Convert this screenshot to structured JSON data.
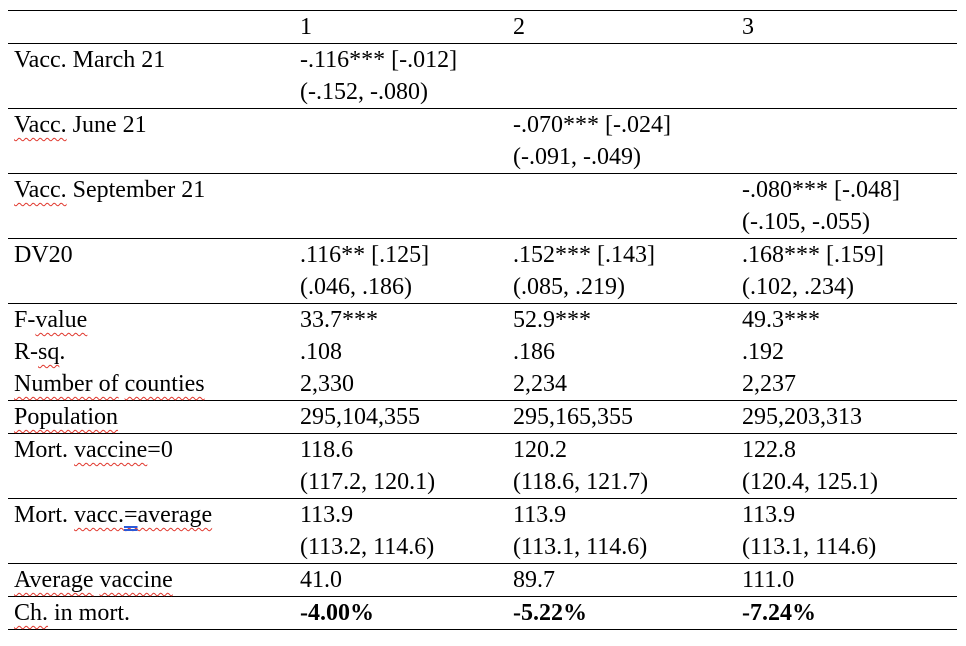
{
  "page": {
    "background": "#ffffff"
  },
  "style": {
    "text_color": "#000000",
    "border_color": "#000000",
    "spell_underline_color": "#e0362c",
    "grammar_underline_color": "#2b59d8"
  },
  "table": {
    "header": [
      "",
      "1",
      "2",
      "3"
    ],
    "rows": [
      {
        "name": "row-vacc-march-21",
        "border_top": true,
        "bold": false,
        "label": [
          {
            "text": "Vacc. March 21"
          }
        ],
        "cells": [
          {
            "lines": [
              "-.116*** [-.012]",
              "(-.152, -.080)"
            ]
          },
          {
            "lines": []
          },
          {
            "lines": []
          }
        ]
      },
      {
        "name": "row-vacc-june-21",
        "border_top": true,
        "bold": false,
        "label": [
          {
            "text": "Vacc.",
            "mark": "sp"
          },
          {
            "text": " June 21"
          }
        ],
        "cells": [
          {
            "lines": []
          },
          {
            "lines": [
              "-.070*** [-.024]",
              "(-.091, -.049)"
            ]
          },
          {
            "lines": []
          }
        ]
      },
      {
        "name": "row-vacc-september-21",
        "border_top": true,
        "bold": false,
        "label": [
          {
            "text": "Vacc.",
            "mark": "sp"
          },
          {
            "text": " September 21"
          }
        ],
        "cells": [
          {
            "lines": []
          },
          {
            "lines": []
          },
          {
            "lines": [
              "-.080*** [-.048]",
              "(-.105, -.055)"
            ]
          }
        ]
      },
      {
        "name": "row-dv20",
        "border_top": true,
        "bold": false,
        "label": [
          {
            "text": "DV20"
          }
        ],
        "cells": [
          {
            "lines": [
              ".116** [.125]",
              "(.046, .186)"
            ]
          },
          {
            "lines": [
              ".152*** [.143]",
              "(.085, .219)"
            ]
          },
          {
            "lines": [
              ".168*** [.159]",
              "(.102, .234)"
            ]
          }
        ]
      },
      {
        "name": "row-f-value",
        "border_top": true,
        "bold": false,
        "label": [
          {
            "text": "F-"
          },
          {
            "text": "value",
            "mark": "sp"
          }
        ],
        "cells": [
          {
            "lines": [
              "33.7***"
            ]
          },
          {
            "lines": [
              "52.9***"
            ]
          },
          {
            "lines": [
              "49.3***"
            ]
          }
        ]
      },
      {
        "name": "row-r-sq",
        "border_top": false,
        "bold": false,
        "label": [
          {
            "text": "R-"
          },
          {
            "text": "sq",
            "mark": "sp"
          },
          {
            "text": "."
          }
        ],
        "cells": [
          {
            "lines": [
              ".108"
            ]
          },
          {
            "lines": [
              ".186"
            ]
          },
          {
            "lines": [
              ".192"
            ]
          }
        ]
      },
      {
        "name": "row-number-of-counties",
        "border_top": false,
        "bold": false,
        "label": [
          {
            "text": "Number of",
            "mark": "sp"
          },
          {
            "text": " "
          },
          {
            "text": "counties",
            "mark": "sp"
          }
        ],
        "cells": [
          {
            "lines": [
              "2,330"
            ]
          },
          {
            "lines": [
              "2,234"
            ]
          },
          {
            "lines": [
              "2,237"
            ]
          }
        ]
      },
      {
        "name": "row-population",
        "border_top": true,
        "bold": false,
        "label": [
          {
            "text": "Population",
            "mark": "sp"
          }
        ],
        "cells": [
          {
            "lines": [
              "295,104,355"
            ]
          },
          {
            "lines": [
              "295,165,355"
            ]
          },
          {
            "lines": [
              "295,203,313"
            ]
          }
        ]
      },
      {
        "name": "row-mort-vaccine-0",
        "border_top": true,
        "bold": false,
        "label": [
          {
            "text": "Mort. "
          },
          {
            "text": "vaccine",
            "mark": "sp"
          },
          {
            "text": "=0"
          }
        ],
        "cells": [
          {
            "lines": [
              "118.6",
              "(117.2, 120.1)"
            ]
          },
          {
            "lines": [
              "120.2",
              "(118.6, 121.7)"
            ]
          },
          {
            "lines": [
              "122.8",
              "(120.4, 125.1)"
            ]
          }
        ]
      },
      {
        "name": "row-mort-vacc-average",
        "border_top": true,
        "bold": false,
        "label": [
          {
            "text": "Mort. "
          },
          {
            "text": "vacc.",
            "mark": "sp"
          },
          {
            "text": "=",
            "mark": "sp gr"
          },
          {
            "text": "average",
            "mark": "sp"
          }
        ],
        "cells": [
          {
            "lines": [
              "113.9",
              "(113.2, 114.6)"
            ]
          },
          {
            "lines": [
              "113.9",
              "(113.1, 114.6)"
            ]
          },
          {
            "lines": [
              "113.9",
              "(113.1, 114.6)"
            ]
          }
        ]
      },
      {
        "name": "row-average-vaccine",
        "border_top": true,
        "bold": false,
        "label": [
          {
            "text": "Average",
            "mark": "sp"
          },
          {
            "text": " "
          },
          {
            "text": "vaccine",
            "mark": "sp"
          }
        ],
        "cells": [
          {
            "lines": [
              "41.0"
            ]
          },
          {
            "lines": [
              "89.7"
            ]
          },
          {
            "lines": [
              "111.0"
            ]
          }
        ]
      },
      {
        "name": "row-ch-in-mort",
        "border_top": true,
        "bold": true,
        "label": [
          {
            "text": "Ch.",
            "mark": "sp"
          },
          {
            "text": " in mort."
          }
        ],
        "cells": [
          {
            "lines": [
              "-4.00%"
            ]
          },
          {
            "lines": [
              "-5.22%"
            ]
          },
          {
            "lines": [
              "-7.24%"
            ]
          }
        ]
      }
    ]
  }
}
